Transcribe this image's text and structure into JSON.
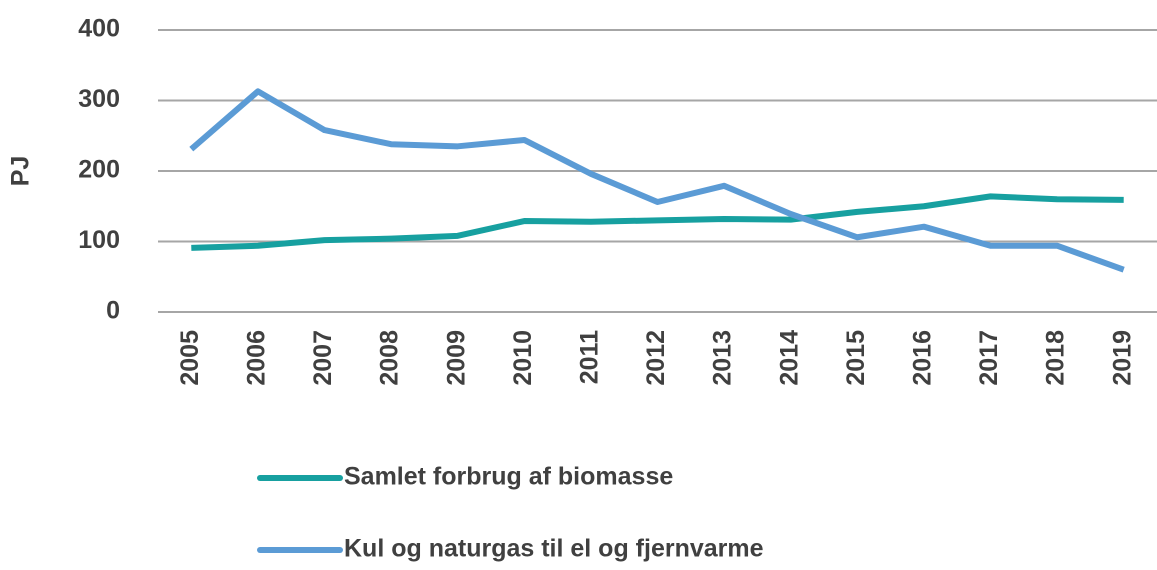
{
  "chart_data": {
    "type": "line",
    "y_label": "PJ",
    "categories": [
      "2005",
      "2006",
      "2007",
      "2008",
      "2009",
      "2010",
      "2011",
      "2012",
      "2013",
      "2014",
      "2015",
      "2016",
      "2017",
      "2018",
      "2019"
    ],
    "series": [
      {
        "name": "Samlet forbrug af biomasse",
        "color": "#17a0a0",
        "values": [
          91,
          94,
          102,
          104,
          108,
          129,
          128,
          130,
          132,
          131,
          142,
          150,
          164,
          160,
          159
        ]
      },
      {
        "name": "Kul og naturgas til el og fjernvarme",
        "color": "#5b9bd5",
        "values": [
          231,
          313,
          258,
          238,
          235,
          244,
          196,
          156,
          179,
          139,
          106,
          121,
          94,
          94,
          60
        ]
      }
    ],
    "ylim": [
      0,
      400
    ],
    "yticks": [
      0,
      100,
      200,
      300,
      400
    ],
    "grid": true
  }
}
